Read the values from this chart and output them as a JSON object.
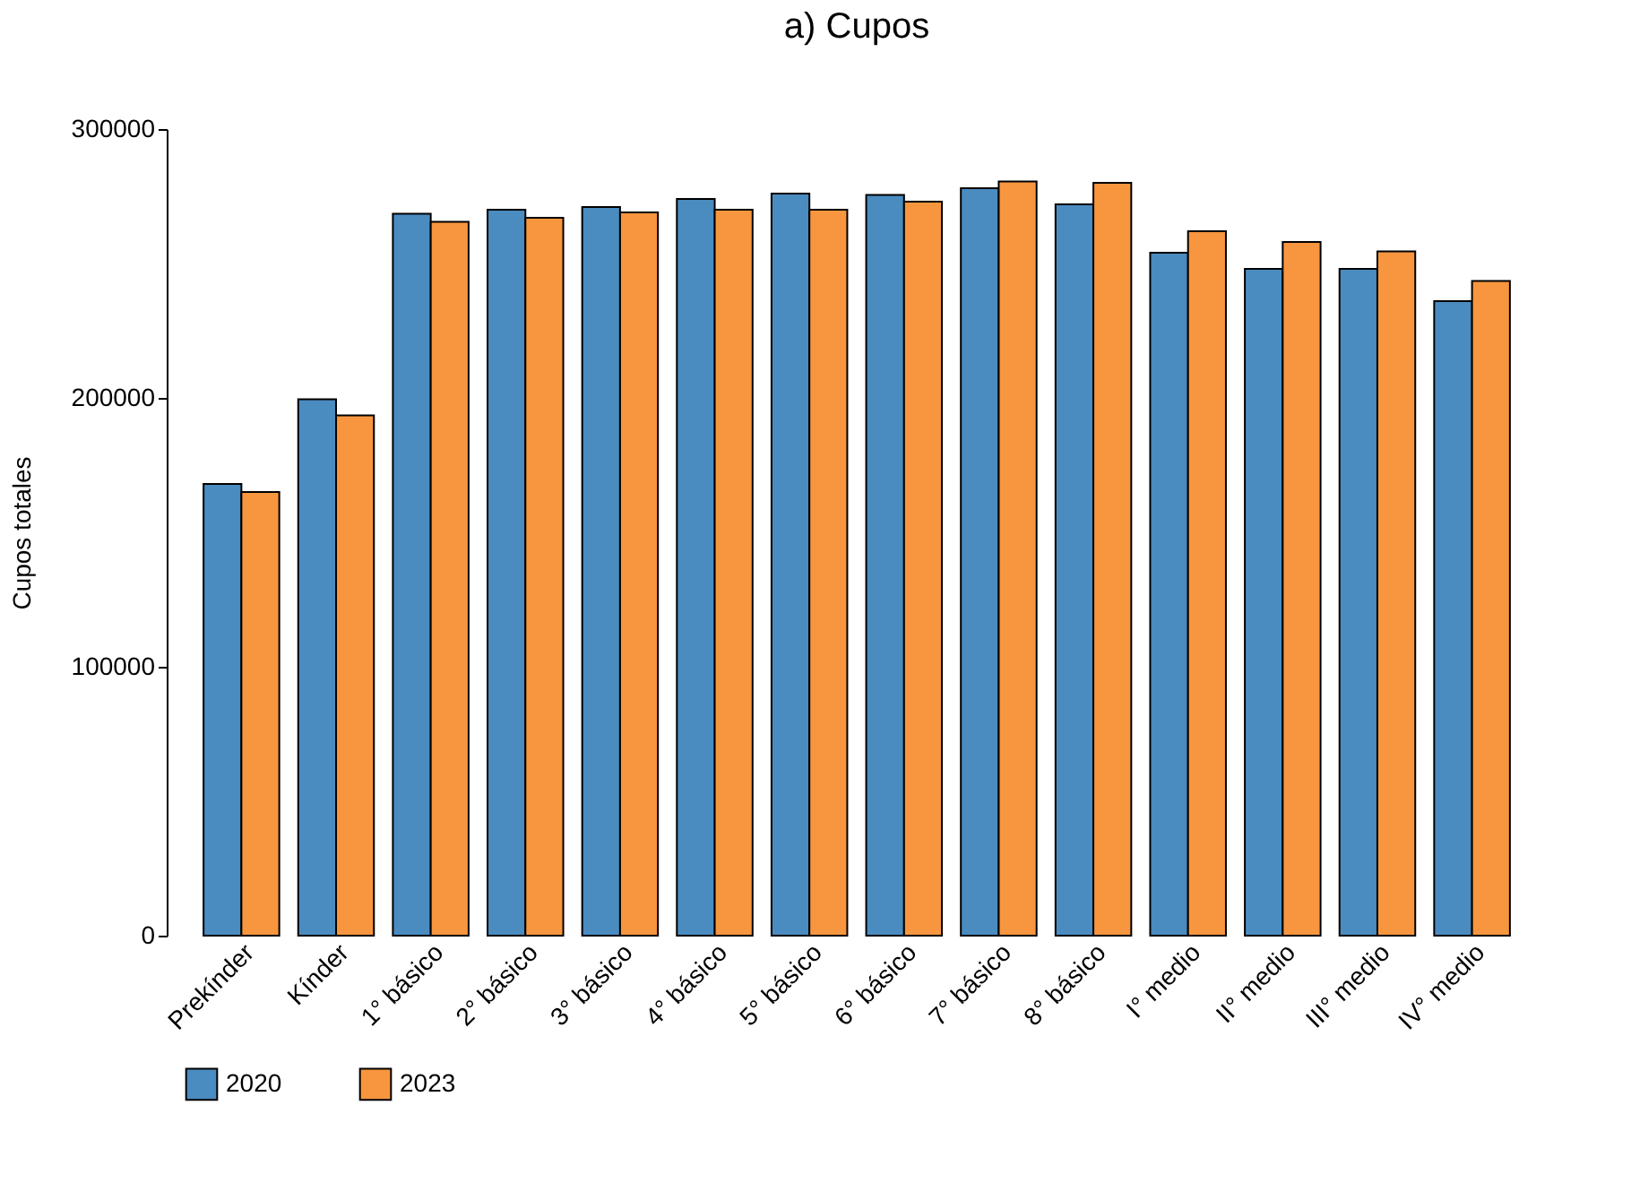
{
  "chart_data": {
    "type": "bar",
    "title": "a) Cupos",
    "ylabel": "Cupos totales",
    "categories": [
      "Prekínder",
      "Kínder",
      "1° básico",
      "2° básico",
      "3° básico",
      "4° básico",
      "5° básico",
      "6° básico",
      "7° básico",
      "8° básico",
      "I° medio",
      "II° medio",
      "III° medio",
      "IV° medio"
    ],
    "series": [
      {
        "name": "2020",
        "color": "#4a8bc0",
        "values": [
          168000,
          199500,
          268500,
          270000,
          271000,
          274000,
          276000,
          275500,
          278000,
          272000,
          254000,
          248000,
          248000,
          236000
        ]
      },
      {
        "name": "2023",
        "color": "#f7963f",
        "values": [
          165000,
          193500,
          265500,
          267000,
          269000,
          270000,
          270000,
          273000,
          280500,
          280000,
          262000,
          258000,
          254500,
          243500
        ]
      }
    ],
    "ylim": [
      0,
      300000
    ],
    "yticks": [
      0,
      100000,
      200000,
      300000
    ],
    "grid": false,
    "legend": "bottom"
  }
}
